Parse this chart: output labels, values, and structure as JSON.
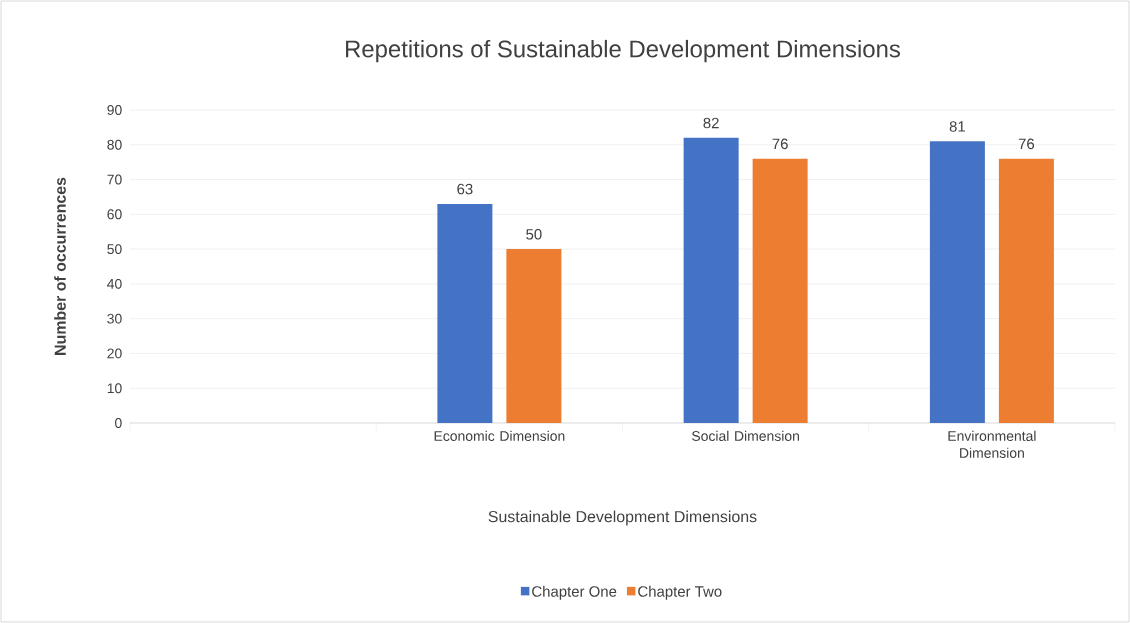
{
  "chart_data": {
    "type": "bar",
    "title": "Repetitions of Sustainable Development Dimensions",
    "xlabel": "Sustainable Development Dimensions",
    "ylabel": "Number of occurrences",
    "categories": [
      null,
      "Economic Dimension",
      "Social Dimension",
      "Environmental Dimension"
    ],
    "series": [
      {
        "name": "Chapter One",
        "color": "#4472c4",
        "values": [
          null,
          63,
          82,
          81
        ]
      },
      {
        "name": "Chapter Two",
        "color": "#ed7d31",
        "values": [
          null,
          50,
          76,
          76
        ]
      }
    ],
    "ylim": [
      0,
      90
    ],
    "yticks": [
      0,
      10,
      20,
      30,
      40,
      50,
      60,
      70,
      80,
      90
    ],
    "grid": "y",
    "legend": "bottom",
    "data_labels": true
  }
}
